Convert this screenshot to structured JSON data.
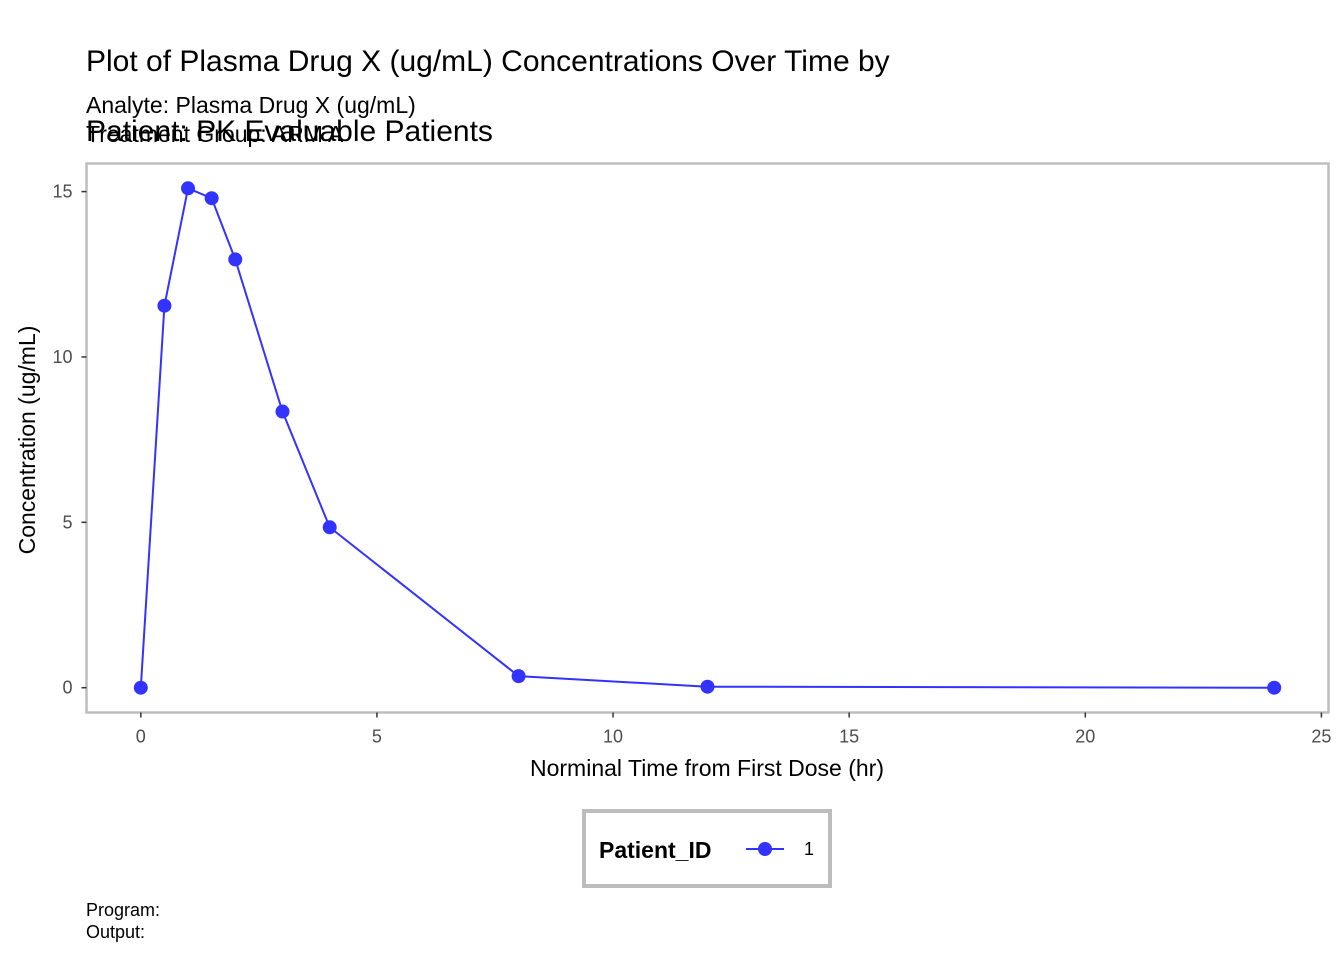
{
  "header": {
    "title_line1": "Plot of Plasma Drug X (ug/mL) Concentrations Over Time by",
    "title_line2": "Patient: PK Evaluable Patients",
    "subtitle_line1": "Analyte: Plasma Drug X (ug/mL)",
    "subtitle_line2": "Treatment Group: ARM A"
  },
  "footer": {
    "program": "Program:",
    "output": "Output:"
  },
  "chart_data": {
    "type": "line",
    "xlabel": "Norminal Time from First Dose (hr)",
    "ylabel": "Concentration (ug/mL)",
    "xlim": [
      -1.15,
      25.15
    ],
    "ylim": [
      -0.75,
      15.85
    ],
    "x_ticks": [
      0,
      5,
      10,
      15,
      20,
      25
    ],
    "y_ticks": [
      0,
      5,
      10,
      15
    ],
    "grid": false,
    "legend_position": "bottom",
    "legend_title": "Patient_ID",
    "series": [
      {
        "name": "1",
        "color": "#3333ff",
        "x": [
          0,
          0.5,
          1,
          1.5,
          2,
          3,
          4,
          8,
          12,
          24
        ],
        "y": [
          0,
          11.55,
          15.1,
          14.8,
          12.95,
          8.35,
          4.85,
          0.35,
          0.03,
          0.0
        ]
      }
    ]
  }
}
